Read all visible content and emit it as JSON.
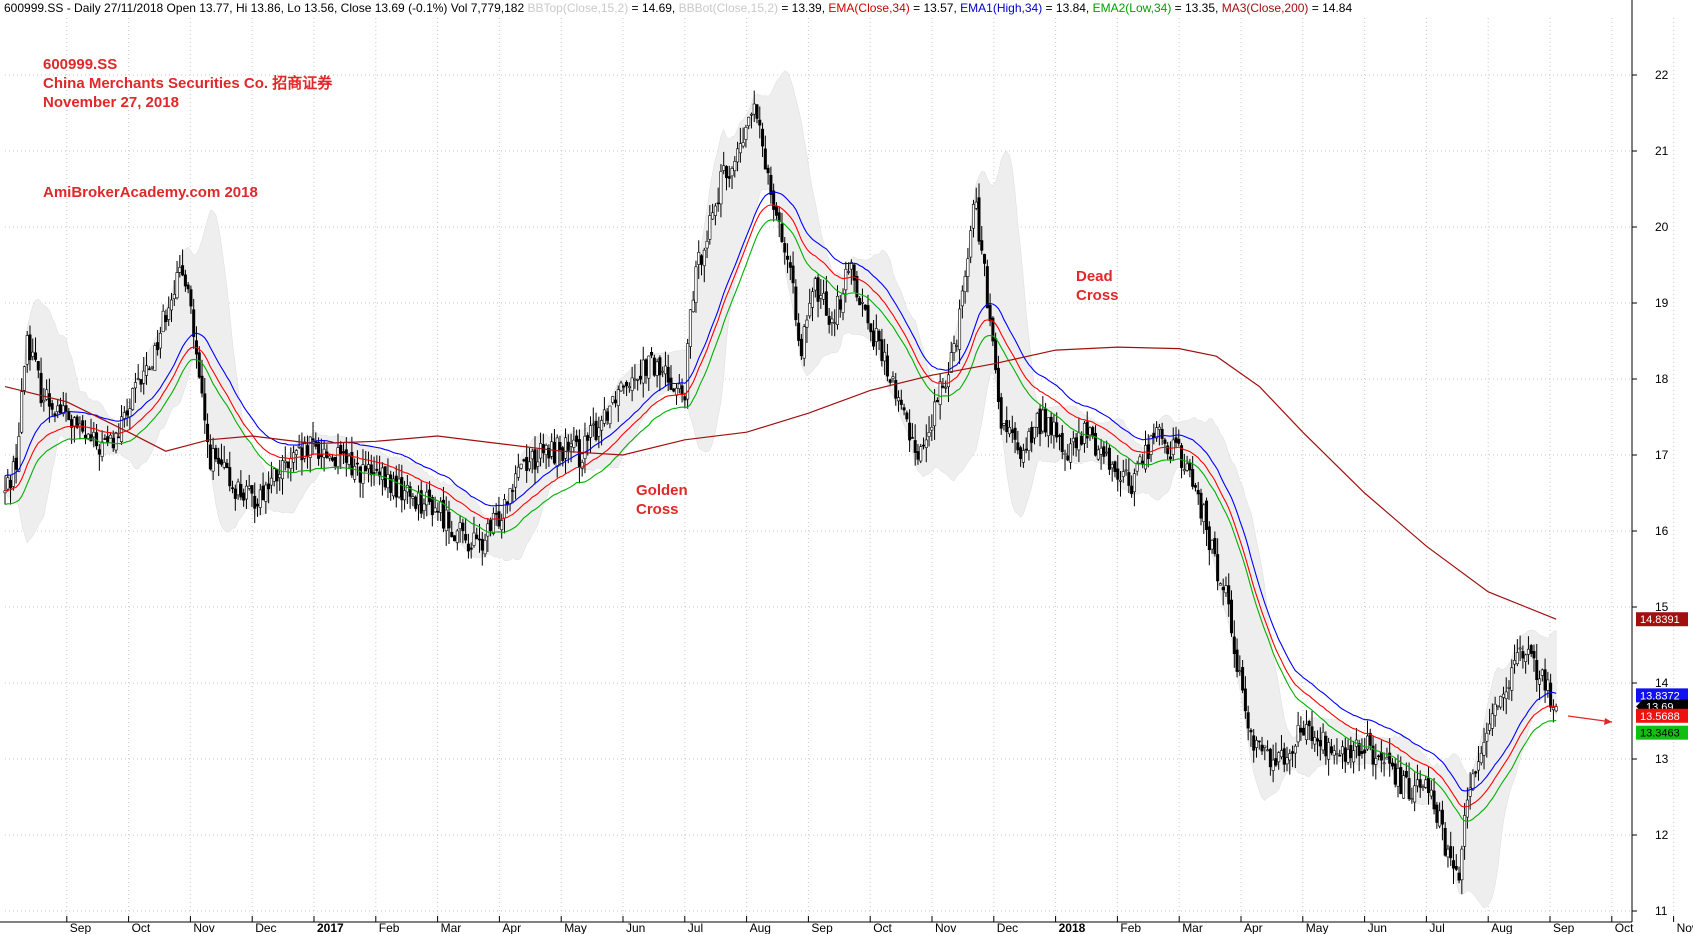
{
  "header": {
    "symbol_line": "600999.SS - Daily 27/11/2018 Open 13.77, Hi 13.86, Lo 13.56, Close 13.69 (-0.1%) Vol 7,779,182",
    "bbtop_label": "BBTop(Close,15,2)",
    "bbtop_value": "= 14.69,",
    "bbbot_label": "BBBot(Close,15,2)",
    "bbbot_value": "= 13.39,",
    "ema_label": "EMA(Close,34)",
    "ema_value": "= 13.57,",
    "ema1_label": "EMA1(High,34)",
    "ema1_value": "= 13.84,",
    "ema2_label": "EMA2(Low,34)",
    "ema2_value": "= 13.35,",
    "ma3_label": "MA3(Close,200)",
    "ma3_value": "= 14.84"
  },
  "annotations": {
    "ticker": "600999.SS",
    "company": "China Merchants Securities Co.  招商证券",
    "date": "November 27, 2018",
    "watermark": "AmiBrokerAcademy.com  2018",
    "golden_cross": [
      "Golden",
      "Cross"
    ],
    "dead_cross": [
      "Dead",
      "Cross"
    ]
  },
  "chart_data": {
    "type": "candlestick",
    "y_ticks": [
      "11",
      "12",
      "13",
      "14",
      "15",
      "16",
      "17",
      "18",
      "19",
      "20",
      "21",
      "22"
    ],
    "ylim": [
      10.6,
      22.8
    ],
    "x_ticks": [
      {
        "label": "Sep",
        "bold": false
      },
      {
        "label": "Oct",
        "bold": false
      },
      {
        "label": "Nov",
        "bold": false
      },
      {
        "label": "Dec",
        "bold": false
      },
      {
        "label": "2017",
        "bold": true
      },
      {
        "label": "Feb",
        "bold": false
      },
      {
        "label": "Mar",
        "bold": false
      },
      {
        "label": "Apr",
        "bold": false
      },
      {
        "label": "May",
        "bold": false
      },
      {
        "label": "Jun",
        "bold": false
      },
      {
        "label": "Jul",
        "bold": false
      },
      {
        "label": "Aug",
        "bold": false
      },
      {
        "label": "Sep",
        "bold": false
      },
      {
        "label": "Oct",
        "bold": false
      },
      {
        "label": "Nov",
        "bold": false
      },
      {
        "label": "Dec",
        "bold": false
      },
      {
        "label": "2018",
        "bold": true
      },
      {
        "label": "Feb",
        "bold": false
      },
      {
        "label": "Mar",
        "bold": false
      },
      {
        "label": "Apr",
        "bold": false
      },
      {
        "label": "May",
        "bold": false
      },
      {
        "label": "Jun",
        "bold": false
      },
      {
        "label": "Jul",
        "bold": false
      },
      {
        "label": "Aug",
        "bold": false
      },
      {
        "label": "Sep",
        "bold": false
      },
      {
        "label": "Oct",
        "bold": false
      },
      {
        "label": "Nov",
        "bold": false
      }
    ],
    "price_path": [
      {
        "m": 0.0,
        "p": 16.5
      },
      {
        "m": 0.2,
        "p": 17.0
      },
      {
        "m": 0.35,
        "p": 18.6
      },
      {
        "m": 0.6,
        "p": 17.8
      },
      {
        "m": 0.9,
        "p": 17.6
      },
      {
        "m": 1.2,
        "p": 17.3
      },
      {
        "m": 1.5,
        "p": 17.1
      },
      {
        "m": 1.8,
        "p": 17.2
      },
      {
        "m": 2.1,
        "p": 17.8
      },
      {
        "m": 2.4,
        "p": 18.3
      },
      {
        "m": 2.7,
        "p": 19.2
      },
      {
        "m": 2.95,
        "p": 19.4
      },
      {
        "m": 3.1,
        "p": 18.2
      },
      {
        "m": 3.3,
        "p": 17.0
      },
      {
        "m": 3.7,
        "p": 16.6
      },
      {
        "m": 4.0,
        "p": 16.4
      },
      {
        "m": 4.5,
        "p": 16.8
      },
      {
        "m": 5.0,
        "p": 17.1
      },
      {
        "m": 5.5,
        "p": 16.9
      },
      {
        "m": 6.0,
        "p": 16.7
      },
      {
        "m": 6.5,
        "p": 16.5
      },
      {
        "m": 7.0,
        "p": 16.3
      },
      {
        "m": 7.4,
        "p": 15.9
      },
      {
        "m": 7.7,
        "p": 15.8
      },
      {
        "m": 8.0,
        "p": 16.2
      },
      {
        "m": 8.3,
        "p": 16.9
      },
      {
        "m": 8.7,
        "p": 17.0
      },
      {
        "m": 9.0,
        "p": 17.1
      },
      {
        "m": 9.3,
        "p": 17.0
      },
      {
        "m": 9.6,
        "p": 17.4
      },
      {
        "m": 10.0,
        "p": 18.0
      },
      {
        "m": 10.4,
        "p": 18.2
      },
      {
        "m": 10.8,
        "p": 18.0
      },
      {
        "m": 11.0,
        "p": 17.7
      },
      {
        "m": 11.1,
        "p": 19.0
      },
      {
        "m": 11.3,
        "p": 19.8
      },
      {
        "m": 11.6,
        "p": 20.6
      },
      {
        "m": 11.9,
        "p": 21.0
      },
      {
        "m": 12.1,
        "p": 21.6
      },
      {
        "m": 12.3,
        "p": 20.9
      },
      {
        "m": 12.6,
        "p": 19.8
      },
      {
        "m": 12.9,
        "p": 18.4
      },
      {
        "m": 13.1,
        "p": 19.2
      },
      {
        "m": 13.4,
        "p": 18.8
      },
      {
        "m": 13.7,
        "p": 19.5
      },
      {
        "m": 13.9,
        "p": 18.9
      },
      {
        "m": 14.2,
        "p": 18.3
      },
      {
        "m": 14.5,
        "p": 17.6
      },
      {
        "m": 14.8,
        "p": 17.0
      },
      {
        "m": 15.1,
        "p": 17.7
      },
      {
        "m": 15.4,
        "p": 18.6
      },
      {
        "m": 15.7,
        "p": 20.4
      },
      {
        "m": 15.9,
        "p": 19.0
      },
      {
        "m": 16.1,
        "p": 17.5
      },
      {
        "m": 16.4,
        "p": 17.0
      },
      {
        "m": 16.8,
        "p": 17.5
      },
      {
        "m": 17.2,
        "p": 17.0
      },
      {
        "m": 17.5,
        "p": 17.3
      },
      {
        "m": 17.8,
        "p": 17.0
      },
      {
        "m": 18.2,
        "p": 16.6
      },
      {
        "m": 18.6,
        "p": 17.3
      },
      {
        "m": 19.0,
        "p": 17.0
      },
      {
        "m": 19.3,
        "p": 16.5
      },
      {
        "m": 19.6,
        "p": 15.5
      },
      {
        "m": 19.8,
        "p": 15.1
      },
      {
        "m": 20.0,
        "p": 13.9
      },
      {
        "m": 20.2,
        "p": 13.2
      },
      {
        "m": 20.6,
        "p": 13.0
      },
      {
        "m": 21.0,
        "p": 13.4
      },
      {
        "m": 21.3,
        "p": 13.2
      },
      {
        "m": 21.7,
        "p": 13.0
      },
      {
        "m": 22.0,
        "p": 13.2
      },
      {
        "m": 22.3,
        "p": 12.9
      },
      {
        "m": 22.7,
        "p": 12.6
      },
      {
        "m": 23.0,
        "p": 12.8
      },
      {
        "m": 23.2,
        "p": 12.2
      },
      {
        "m": 23.35,
        "p": 11.7
      },
      {
        "m": 23.5,
        "p": 11.4
      },
      {
        "m": 23.7,
        "p": 12.6
      },
      {
        "m": 24.0,
        "p": 13.5
      },
      {
        "m": 24.3,
        "p": 14.0
      },
      {
        "m": 24.6,
        "p": 14.4
      },
      {
        "m": 24.9,
        "p": 14.0
      },
      {
        "m": 25.1,
        "p": 13.69
      }
    ],
    "ma200_path": [
      {
        "m": 0.0,
        "p": 17.9
      },
      {
        "m": 1.0,
        "p": 17.7
      },
      {
        "m": 2.0,
        "p": 17.3
      },
      {
        "m": 2.6,
        "p": 17.05
      },
      {
        "m": 3.3,
        "p": 17.2
      },
      {
        "m": 4.0,
        "p": 17.25
      },
      {
        "m": 5.0,
        "p": 17.15
      },
      {
        "m": 6.0,
        "p": 17.18
      },
      {
        "m": 7.0,
        "p": 17.25
      },
      {
        "m": 8.0,
        "p": 17.15
      },
      {
        "m": 9.0,
        "p": 17.05
      },
      {
        "m": 10.0,
        "p": 17.0
      },
      {
        "m": 11.0,
        "p": 17.2
      },
      {
        "m": 12.0,
        "p": 17.3
      },
      {
        "m": 13.0,
        "p": 17.55
      },
      {
        "m": 14.0,
        "p": 17.85
      },
      {
        "m": 15.0,
        "p": 18.05
      },
      {
        "m": 16.0,
        "p": 18.2
      },
      {
        "m": 17.0,
        "p": 18.38
      },
      {
        "m": 18.0,
        "p": 18.42
      },
      {
        "m": 19.0,
        "p": 18.4
      },
      {
        "m": 19.6,
        "p": 18.3
      },
      {
        "m": 20.3,
        "p": 17.9
      },
      {
        "m": 21.0,
        "p": 17.3
      },
      {
        "m": 22.0,
        "p": 16.5
      },
      {
        "m": 23.0,
        "p": 15.8
      },
      {
        "m": 24.0,
        "p": 15.2
      },
      {
        "m": 25.1,
        "p": 14.84
      }
    ],
    "last_values": {
      "ma3": "14.8391",
      "ema1": "13.8372",
      "close": "13.69",
      "ema": "13.5688",
      "ema2": "13.3463"
    },
    "colors": {
      "candle": "#000000",
      "bollinger_fill": "#eeeeee",
      "ema": "#ff0000",
      "ema1": "#0000ff",
      "ema2": "#00b000",
      "ma3": "#a01010",
      "grid": "#c8c8c8",
      "annotation": "#e0282a"
    }
  }
}
